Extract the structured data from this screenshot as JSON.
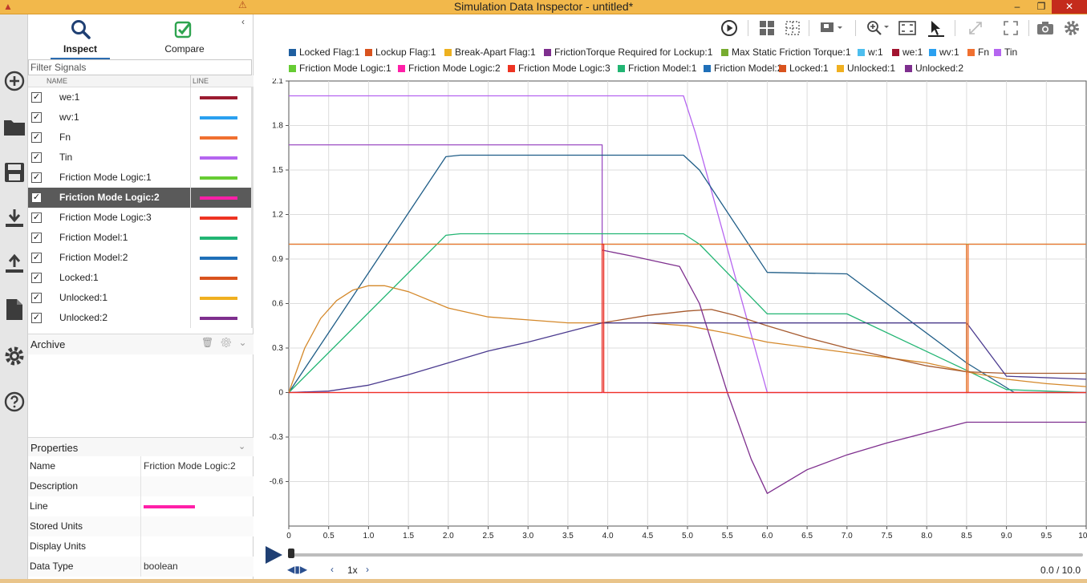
{
  "window": {
    "title": "Simulation Data Inspector - untitled*",
    "minimize": "–",
    "restore": "❐",
    "close": "✕"
  },
  "tabs": [
    {
      "label": "Inspect",
      "icon": "search-icon"
    },
    {
      "label": "Compare",
      "icon": "checkbox-check-icon"
    }
  ],
  "filter": {
    "placeholder": "Filter Signals"
  },
  "columns": {
    "name": "NAME",
    "line": "LINE"
  },
  "signals": [
    {
      "name": "we:1",
      "color": "#9b1b30",
      "checked": true
    },
    {
      "name": "wv:1",
      "color": "#2aa0f0",
      "checked": true
    },
    {
      "name": "Fn",
      "color": "#f07030",
      "checked": true
    },
    {
      "name": "Tin",
      "color": "#b565f0",
      "checked": true
    },
    {
      "name": "Friction Mode Logic:1",
      "color": "#66cc33",
      "checked": true
    },
    {
      "name": "Friction Mode Logic:2",
      "color": "#ff1fa8",
      "checked": true,
      "selected": true
    },
    {
      "name": "Friction Mode Logic:3",
      "color": "#ee3322",
      "checked": true
    },
    {
      "name": "Friction Model:1",
      "color": "#22b573",
      "checked": true
    },
    {
      "name": "Friction Model:2",
      "color": "#1f6fb8",
      "checked": true
    },
    {
      "name": "Locked:1",
      "color": "#d9531e",
      "checked": true
    },
    {
      "name": "Unlocked:1",
      "color": "#f0b020",
      "checked": true
    },
    {
      "name": "Unlocked:2",
      "color": "#7e2f8e",
      "checked": true
    }
  ],
  "archive": {
    "label": "Archive"
  },
  "properties": {
    "label": "Properties",
    "rows": [
      {
        "label": "Name",
        "value": "Friction Mode Logic:2"
      },
      {
        "label": "Description",
        "value": ""
      },
      {
        "label": "Line",
        "value": "",
        "color": "#ff1fa8"
      },
      {
        "label": "Stored Units",
        "value": ""
      },
      {
        "label": "Display Units",
        "value": ""
      },
      {
        "label": "Data Type",
        "value": "boolean"
      }
    ]
  },
  "legend": [
    {
      "name": "Locked Flag:1",
      "color": "#1f5fa0"
    },
    {
      "name": "Lockup Flag:1",
      "color": "#d9531e"
    },
    {
      "name": "Break-Apart Flag:1",
      "color": "#edb120"
    },
    {
      "name": "FrictionTorque Required for Lockup:1",
      "color": "#7e2f8e"
    },
    {
      "name": "Max Static Friction Torque:1",
      "color": "#77ac30"
    },
    {
      "name": "w:1",
      "color": "#4dbeee"
    },
    {
      "name": "we:1",
      "color": "#a2142f"
    },
    {
      "name": "wv:1",
      "color": "#2aa0f0"
    },
    {
      "name": "Fn",
      "color": "#f07030"
    },
    {
      "name": "Tin",
      "color": "#b565f0"
    },
    {
      "name": "Friction Mode Logic:1",
      "color": "#66cc33"
    },
    {
      "name": "Friction Mode Logic:2",
      "color": "#ff1fa8"
    },
    {
      "name": "Friction Mode Logic:3",
      "color": "#ee3322"
    },
    {
      "name": "Friction Model:1",
      "color": "#22b573"
    },
    {
      "name": "Friction Model:2",
      "color": "#1f6fb8"
    },
    {
      "name": "Locked:1",
      "color": "#d9531e"
    },
    {
      "name": "Unlocked:1",
      "color": "#f0b020"
    },
    {
      "name": "Unlocked:2",
      "color": "#7e2f8e"
    }
  ],
  "chart_data": {
    "type": "line",
    "title": "",
    "xlabel": "",
    "ylabel": "",
    "xlim": [
      0,
      10
    ],
    "ylim": [
      -0.9,
      2.1
    ],
    "grid": true,
    "legend_position": "top",
    "x_ticks": [
      "0",
      "0.5",
      "1.0",
      "1.5",
      "2.0",
      "2.5",
      "3.0",
      "3.5",
      "4.0",
      "4.5",
      "5.0",
      "5.5",
      "6.0",
      "6.5",
      "7.0",
      "7.5",
      "8.0",
      "8.5",
      "9.0",
      "9.5",
      "10.0"
    ],
    "y_ticks": [
      "2.1",
      "1.8",
      "1.5",
      "1.2",
      "0.9",
      "0.6",
      "0.3",
      "0",
      "-0.3",
      "-0.6"
    ],
    "y_tick_values": [
      2.1,
      1.8,
      1.5,
      1.2,
      0.9,
      0.6,
      0.3,
      0,
      -0.3,
      -0.6
    ],
    "series": [
      {
        "color": "#b565f0",
        "points": [
          [
            0,
            2
          ],
          [
            4.95,
            2
          ],
          [
            5.1,
            1.75
          ],
          [
            6.0,
            0
          ],
          [
            10,
            0
          ]
        ]
      },
      {
        "color": "#9c4fc4",
        "points": [
          [
            0,
            1.67
          ],
          [
            3.93,
            1.67
          ],
          [
            3.93,
            0
          ]
        ]
      },
      {
        "color": "#1f5d87",
        "points": [
          [
            0,
            0
          ],
          [
            1.97,
            1.59
          ],
          [
            2.15,
            1.6
          ],
          [
            4.95,
            1.6
          ],
          [
            5.15,
            1.5
          ],
          [
            6.0,
            0.81
          ],
          [
            7.0,
            0.8
          ],
          [
            8.5,
            0.2
          ],
          [
            9.1,
            0
          ],
          [
            10,
            0
          ]
        ]
      },
      {
        "color": "#22b573",
        "points": [
          [
            0,
            0
          ],
          [
            1.97,
            1.06
          ],
          [
            2.15,
            1.07
          ],
          [
            4.95,
            1.07
          ],
          [
            5.15,
            1.0
          ],
          [
            6.0,
            0.53
          ],
          [
            7.0,
            0.53
          ],
          [
            8.5,
            0.15
          ],
          [
            9.0,
            0.02
          ],
          [
            10,
            0
          ]
        ]
      },
      {
        "color": "#d4882a",
        "points": [
          [
            0,
            0
          ],
          [
            0.2,
            0.3
          ],
          [
            0.4,
            0.5
          ],
          [
            0.6,
            0.62
          ],
          [
            0.8,
            0.69
          ],
          [
            1.0,
            0.72
          ],
          [
            1.2,
            0.72
          ],
          [
            1.5,
            0.68
          ],
          [
            2.0,
            0.57
          ],
          [
            2.5,
            0.51
          ],
          [
            3.0,
            0.49
          ],
          [
            3.5,
            0.47
          ],
          [
            3.93,
            0.47
          ],
          [
            4.5,
            0.47
          ],
          [
            5.0,
            0.45
          ],
          [
            5.5,
            0.4
          ],
          [
            6.0,
            0.34
          ],
          [
            7.0,
            0.27
          ],
          [
            8.0,
            0.2
          ],
          [
            8.5,
            0.14
          ],
          [
            9.0,
            0.09
          ],
          [
            9.5,
            0.06
          ],
          [
            10,
            0.04
          ]
        ]
      },
      {
        "color": "#a65a2e",
        "points": [
          [
            3.93,
            0.47
          ],
          [
            4.5,
            0.52
          ],
          [
            5.0,
            0.55
          ],
          [
            5.3,
            0.56
          ],
          [
            5.6,
            0.52
          ],
          [
            6.0,
            0.45
          ],
          [
            6.5,
            0.37
          ],
          [
            7.0,
            0.3
          ],
          [
            7.5,
            0.24
          ],
          [
            8.0,
            0.18
          ],
          [
            8.5,
            0.14
          ],
          [
            9.0,
            0.13
          ],
          [
            10,
            0.13
          ]
        ]
      },
      {
        "color": "#4b3b8f",
        "points": [
          [
            0,
            0
          ],
          [
            0.5,
            0.01
          ],
          [
            1.0,
            0.05
          ],
          [
            1.5,
            0.12
          ],
          [
            2.0,
            0.2
          ],
          [
            2.5,
            0.28
          ],
          [
            3.0,
            0.34
          ],
          [
            3.5,
            0.41
          ],
          [
            3.93,
            0.47
          ],
          [
            8.5,
            0.47
          ],
          [
            9.0,
            0.11
          ],
          [
            10,
            0.09
          ]
        ]
      },
      {
        "color": "#7e2f8e",
        "points": [
          [
            3.93,
            0.96
          ],
          [
            4.3,
            0.92
          ],
          [
            4.9,
            0.85
          ],
          [
            5.15,
            0.6
          ],
          [
            5.5,
            0.0
          ],
          [
            5.8,
            -0.45
          ],
          [
            6.0,
            -0.68
          ],
          [
            6.5,
            -0.52
          ],
          [
            7.0,
            -0.42
          ],
          [
            7.5,
            -0.34
          ],
          [
            8.0,
            -0.27
          ],
          [
            8.5,
            -0.2
          ],
          [
            9.0,
            -0.2
          ],
          [
            10,
            -0.2
          ]
        ]
      },
      {
        "color": "#4a3a8a",
        "points": [
          [
            3.93,
            0.47
          ],
          [
            8.5,
            0.47
          ],
          [
            8.5,
            0.12
          ]
        ]
      },
      {
        "color": "#66cc33",
        "points": [
          [
            0,
            1
          ],
          [
            10,
            1
          ]
        ]
      },
      {
        "color": "#f07030",
        "points": [
          [
            0,
            1
          ],
          [
            8.5,
            1
          ],
          [
            8.5,
            0
          ],
          [
            8.52,
            0
          ],
          [
            8.52,
            1
          ],
          [
            10,
            1
          ]
        ]
      },
      {
        "color": "#e0752a",
        "points": [
          [
            8.5,
            0
          ],
          [
            8.5,
            1
          ]
        ]
      },
      {
        "color": "#ff1fa8",
        "points": [
          [
            0,
            0
          ],
          [
            10,
            0
          ]
        ]
      },
      {
        "color": "#ee3322",
        "points": [
          [
            0,
            0
          ],
          [
            3.93,
            0
          ],
          [
            3.93,
            1
          ],
          [
            3.95,
            1
          ],
          [
            3.95,
            0
          ],
          [
            10,
            0
          ]
        ]
      }
    ]
  },
  "playback": {
    "speed": "1x",
    "time": "0.0 / 10.0"
  }
}
